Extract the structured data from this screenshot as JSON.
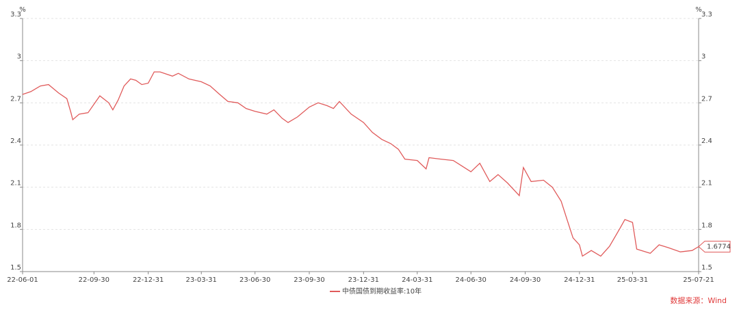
{
  "chart_data": {
    "type": "line",
    "y_unit": "%",
    "y2_unit": "%",
    "xlim": [
      "22-06-01",
      "25-07-21"
    ],
    "xticks": [
      "22-06-01",
      "22-09-30",
      "22-12-31",
      "23-03-31",
      "23-06-30",
      "23-09-30",
      "23-12-31",
      "24-03-31",
      "24-06-30",
      "24-09-30",
      "24-12-31",
      "25-03-31",
      "25-07-21"
    ],
    "ylim": [
      1.5,
      3.3
    ],
    "yticks": [
      1.5,
      1.8,
      2.1,
      2.4,
      2.7,
      3,
      3.3
    ],
    "y2lim": [
      1.5,
      3.3
    ],
    "y2ticks": [
      1.5,
      1.8,
      2.1,
      2.4,
      2.7,
      3,
      3.3
    ],
    "grid": true,
    "x": [
      "22-06-01",
      "22-06-15",
      "22-07-01",
      "22-07-15",
      "22-08-01",
      "22-08-15",
      "22-08-22",
      "22-08-25",
      "22-09-05",
      "22-09-20",
      "22-10-10",
      "22-10-25",
      "22-11-01",
      "22-11-10",
      "22-11-20",
      "22-12-01",
      "22-12-10",
      "22-12-20",
      "22-12-31",
      "23-01-10",
      "23-01-20",
      "23-02-10",
      "23-02-20",
      "23-03-10",
      "23-03-31",
      "23-04-15",
      "23-05-01",
      "23-05-15",
      "23-06-01",
      "23-06-15",
      "23-06-30",
      "23-07-20",
      "23-08-01",
      "23-08-15",
      "23-08-25",
      "23-09-10",
      "23-09-30",
      "23-10-15",
      "23-10-30",
      "23-11-10",
      "23-11-20",
      "23-12-10",
      "23-12-31",
      "24-01-15",
      "24-01-31",
      "24-02-15",
      "24-02-28",
      "24-03-10",
      "24-03-31",
      "24-04-15",
      "24-04-20",
      "24-05-10",
      "24-05-31",
      "24-06-15",
      "24-06-30",
      "24-07-15",
      "24-08-01",
      "24-08-15",
      "24-08-31",
      "24-09-20",
      "24-09-27",
      "24-10-10",
      "24-10-31",
      "24-11-15",
      "24-11-30",
      "24-12-10",
      "24-12-20",
      "24-12-31",
      "25-01-05",
      "25-01-20",
      "25-02-05",
      "25-02-20",
      "25-03-10",
      "25-03-18",
      "25-03-31",
      "25-04-07",
      "25-04-30",
      "25-05-15",
      "25-05-31",
      "25-06-20",
      "25-07-10",
      "25-07-21"
    ],
    "series": [
      {
        "name": "中债国债到期收益率:10年",
        "color": "#e05a5a",
        "values": [
          2.76,
          2.78,
          2.82,
          2.83,
          2.77,
          2.73,
          2.63,
          2.58,
          2.62,
          2.63,
          2.75,
          2.7,
          2.65,
          2.72,
          2.82,
          2.87,
          2.86,
          2.83,
          2.84,
          2.92,
          2.92,
          2.89,
          2.91,
          2.87,
          2.85,
          2.82,
          2.76,
          2.71,
          2.7,
          2.66,
          2.64,
          2.62,
          2.65,
          2.59,
          2.56,
          2.6,
          2.67,
          2.7,
          2.68,
          2.66,
          2.71,
          2.62,
          2.56,
          2.49,
          2.44,
          2.41,
          2.37,
          2.3,
          2.29,
          2.23,
          2.31,
          2.3,
          2.29,
          2.25,
          2.21,
          2.27,
          2.14,
          2.19,
          2.13,
          2.04,
          2.24,
          2.14,
          2.15,
          2.1,
          2.0,
          1.87,
          1.74,
          1.69,
          1.61,
          1.65,
          1.61,
          1.68,
          1.81,
          1.87,
          1.85,
          1.66,
          1.63,
          1.69,
          1.67,
          1.64,
          1.65,
          1.6774
        ]
      }
    ],
    "source": "数据来源：Wind"
  }
}
